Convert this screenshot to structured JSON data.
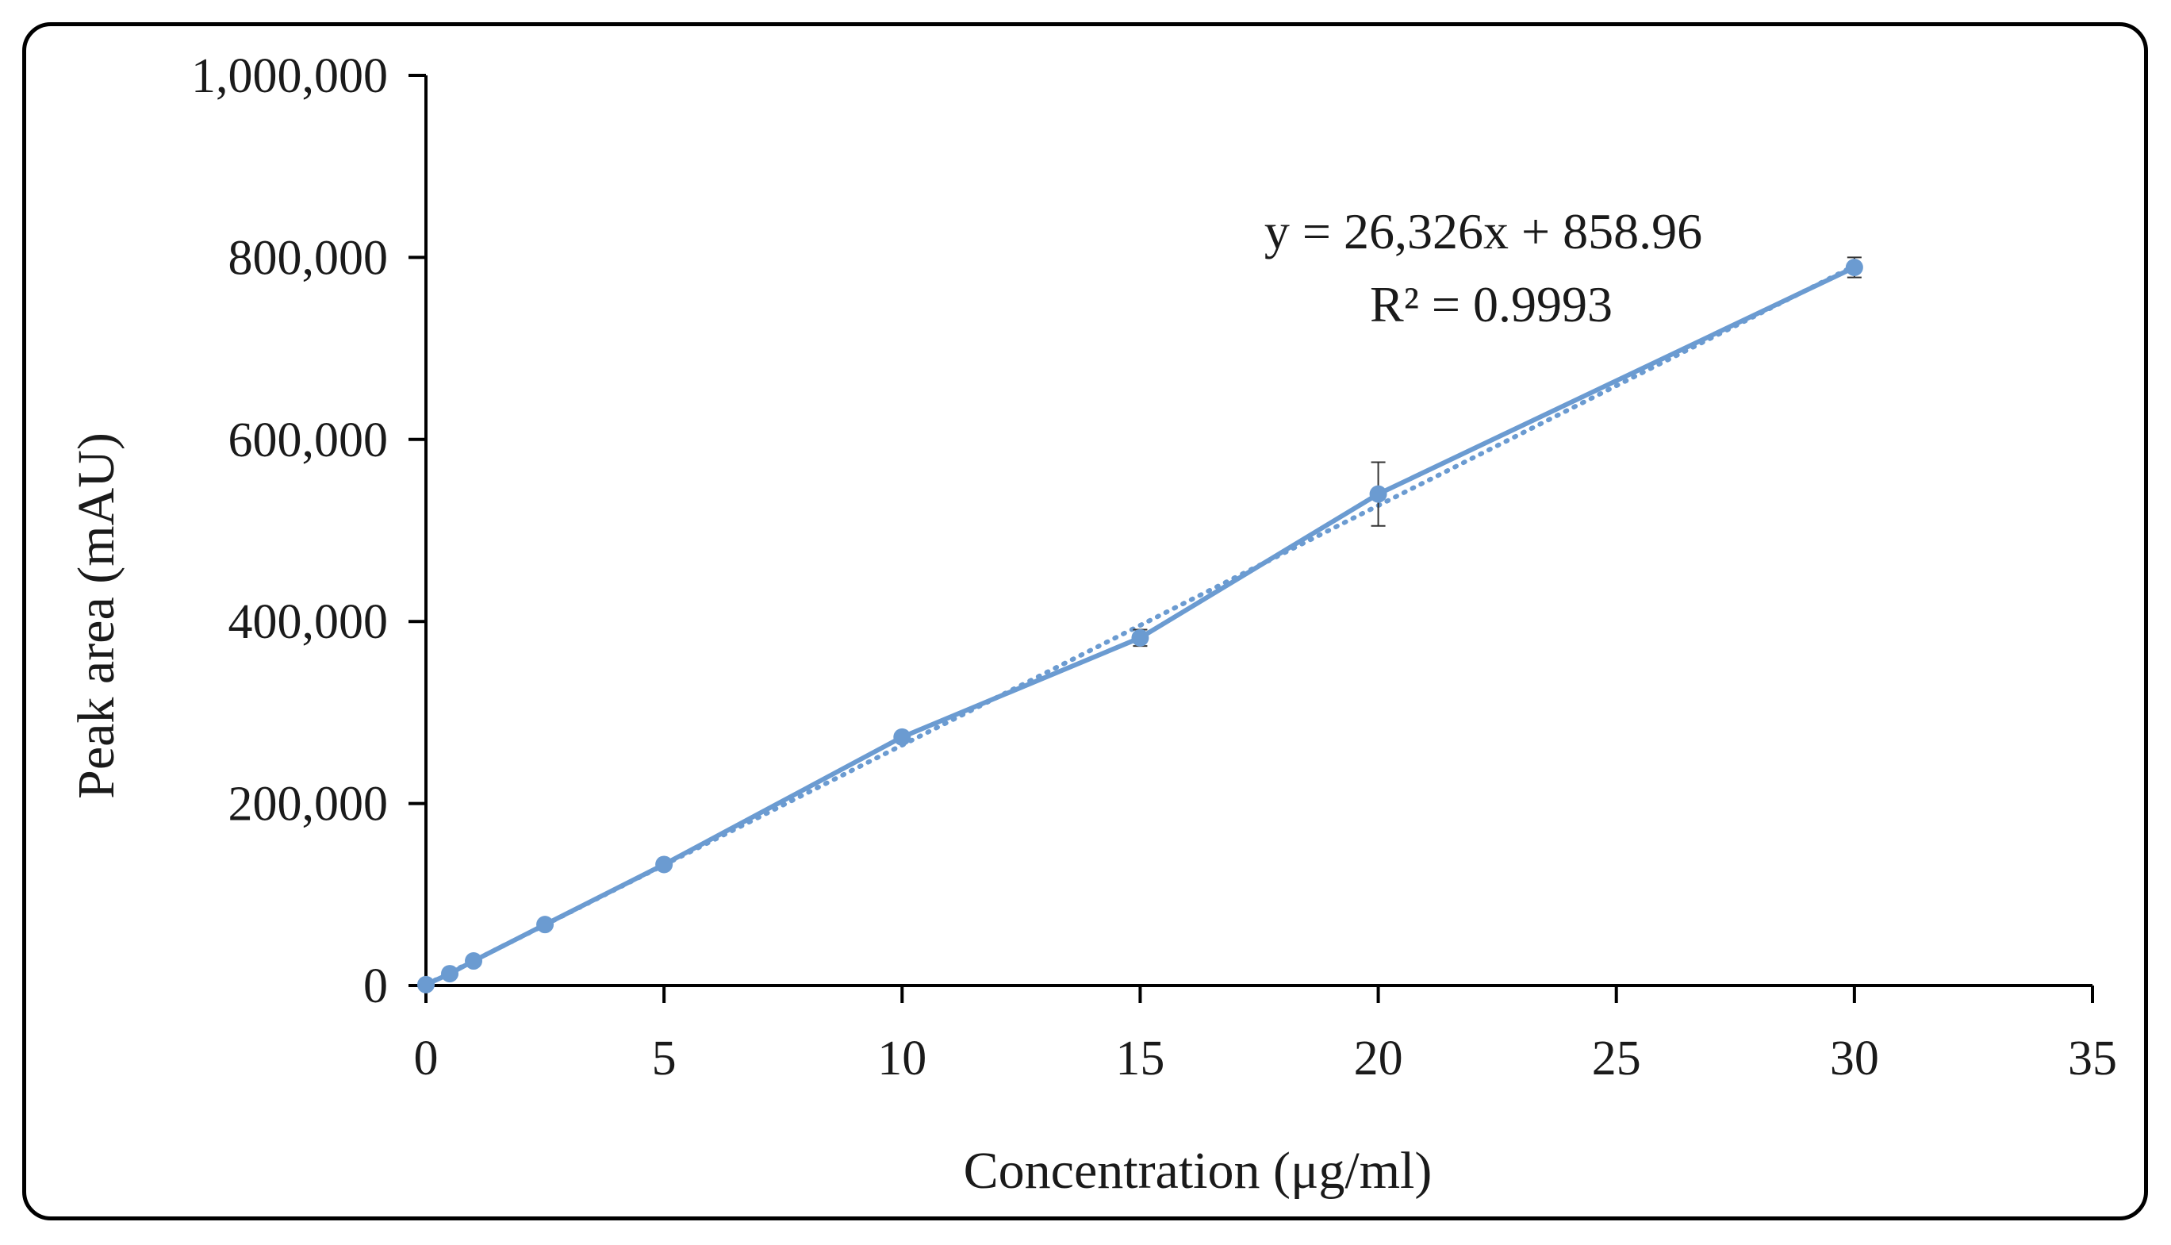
{
  "chart_data": {
    "type": "line",
    "title": "",
    "xlabel": "Concentration (μg/ml)",
    "ylabel": "Peak area (mAU)",
    "xlim": [
      0,
      35
    ],
    "ylim": [
      0,
      1000000
    ],
    "x_ticks": [
      0,
      5,
      10,
      15,
      20,
      25,
      30,
      35
    ],
    "x_tick_labels": [
      "0",
      "5",
      "10",
      "15",
      "20",
      "25",
      "30",
      "35"
    ],
    "y_ticks": [
      0,
      200000,
      400000,
      600000,
      800000,
      1000000
    ],
    "y_tick_labels": [
      "0",
      "200,000",
      "400,000",
      "600,000",
      "800,000",
      "1,000,000"
    ],
    "grid": false,
    "legend": "none",
    "series": [
      {
        "name": "Peak area",
        "color": "#6b9bd1",
        "x": [
          0,
          0.5,
          1,
          2.5,
          5,
          10,
          15,
          20,
          30
        ],
        "y": [
          1000,
          13000,
          27000,
          67000,
          133000,
          273000,
          382000,
          540000,
          789000
        ],
        "error": [
          0,
          0,
          0,
          0,
          0,
          0,
          9000,
          35000,
          11000
        ]
      }
    ],
    "trendline": {
      "type": "linear",
      "slope": 26326,
      "intercept": 858.96,
      "style": "dotted",
      "color": "#6b9bd1"
    },
    "annotations": {
      "equation": "y = 26,326x + 858.96",
      "r_squared": "R² = 0.9993"
    }
  }
}
